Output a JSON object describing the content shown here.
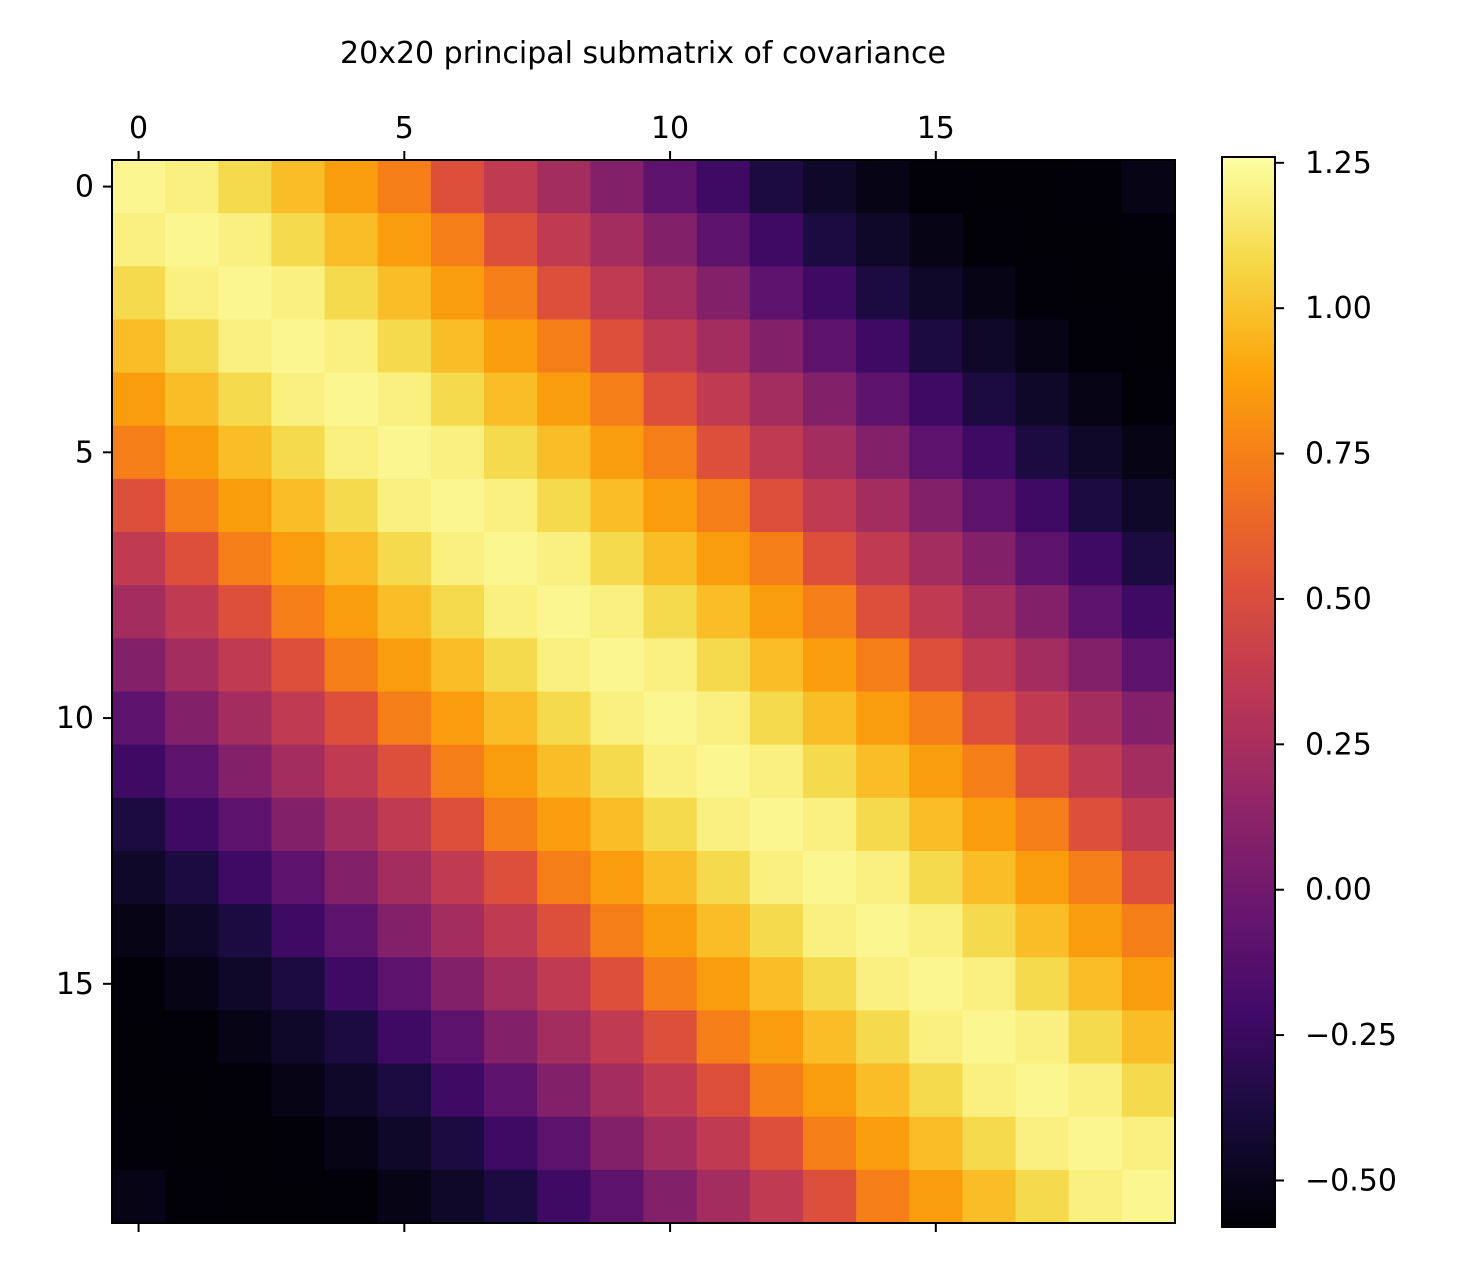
{
  "chart_data": {
    "type": "heatmap",
    "title": "20x20 principal submatrix of covariance",
    "colormap": "inferno",
    "rows": 20,
    "cols": 20,
    "x_tick_labels": [
      "0",
      "5",
      "10",
      "15"
    ],
    "y_tick_labels": [
      "0",
      "5",
      "10",
      "15"
    ],
    "x_ticks": [
      0,
      5,
      10,
      15
    ],
    "y_ticks": [
      0,
      5,
      10,
      15
    ],
    "x_axis_position": "top",
    "colorbar": {
      "vmin": -0.58,
      "vmax": 1.26,
      "ticks": [
        -0.5,
        -0.25,
        0.0,
        0.25,
        0.5,
        0.75,
        1.0,
        1.25
      ],
      "tick_labels": [
        "−0.50",
        "−0.25",
        "0.00",
        "0.25",
        "0.50",
        "0.75",
        "1.00",
        "1.25"
      ]
    },
    "matrix_model": "values depend on |row - col| (stationary covariance)",
    "values_by_distance": [
      1.22,
      1.19,
      1.09,
      0.98,
      0.86,
      0.74,
      0.52,
      0.36,
      0.23,
      0.08,
      -0.09,
      -0.23,
      -0.37,
      -0.45,
      -0.52,
      -0.56,
      -0.57,
      -0.57,
      -0.56,
      -0.52
    ]
  }
}
